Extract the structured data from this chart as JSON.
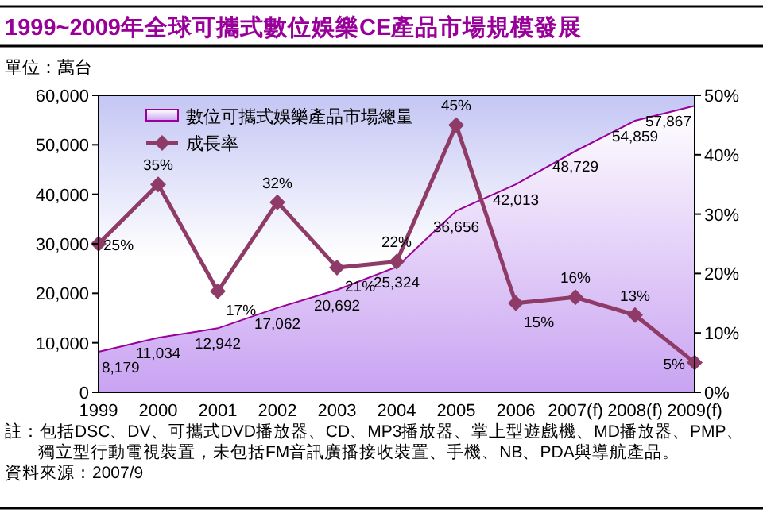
{
  "chart_data": {
    "type": "area",
    "title": "1999~2009年全球可攜式數位娛樂CE產品市場規模發展",
    "ylabel": "單位：萬台",
    "categories": [
      "1999",
      "2000",
      "2001",
      "2002",
      "2003",
      "2004",
      "2005",
      "2006",
      "2007(f)",
      "2008(f)",
      "2009(f)"
    ],
    "series": [
      {
        "name": "數位可攜式娛樂產品市場總量",
        "color": "#c9a3f2",
        "values": [
          8179,
          11034,
          12942,
          17062,
          20692,
          25324,
          36656,
          42013,
          48729,
          54859,
          57867
        ],
        "value_labels": [
          "8,179",
          "11,034",
          "12,942",
          "17,062",
          "20,692",
          "25,324",
          "36,656",
          "42,013",
          "48,729",
          "54,859",
          "57,867"
        ]
      },
      {
        "name": "成長率",
        "type": "line",
        "axis": "y2",
        "color": "#8e3b67",
        "marker": "diamond",
        "values": [
          25,
          35,
          17,
          32,
          21,
          22,
          45,
          15,
          16,
          13,
          5
        ],
        "value_labels": [
          "25%",
          "35%",
          "17%",
          "32%",
          "21%",
          "22%",
          "45%",
          "15%",
          "16%",
          "13%",
          "5%"
        ]
      }
    ],
    "ylim": [
      0,
      60000
    ],
    "yticks": [
      {
        "value": 0,
        "label": "0"
      },
      {
        "value": 10000,
        "label": "10,000"
      },
      {
        "value": 20000,
        "label": "20,000"
      },
      {
        "value": 30000,
        "label": "30,000"
      },
      {
        "value": 40000,
        "label": "40,000"
      },
      {
        "value": 50000,
        "label": "50,000"
      },
      {
        "value": 60000,
        "label": "60,000"
      }
    ],
    "y2lim": [
      0,
      50
    ],
    "y2ticks": [
      {
        "value": 0,
        "label": "0%"
      },
      {
        "value": 10,
        "label": "10%"
      },
      {
        "value": 20,
        "label": "20%"
      },
      {
        "value": 30,
        "label": "30%"
      },
      {
        "value": 40,
        "label": "40%"
      },
      {
        "value": 50,
        "label": "50%"
      }
    ],
    "legend": "top left",
    "annotations": [
      "註：包括DSC、DV、可攜式DVD播放器、CD、MP3播放器、掌上型遊戲機、MD播放器、PMP、獨立型行動電視裝置，未包括FM音訊廣播接收裝置、手機、NB、PDA與導航產品。",
      "資料來源：2007/9"
    ]
  }
}
